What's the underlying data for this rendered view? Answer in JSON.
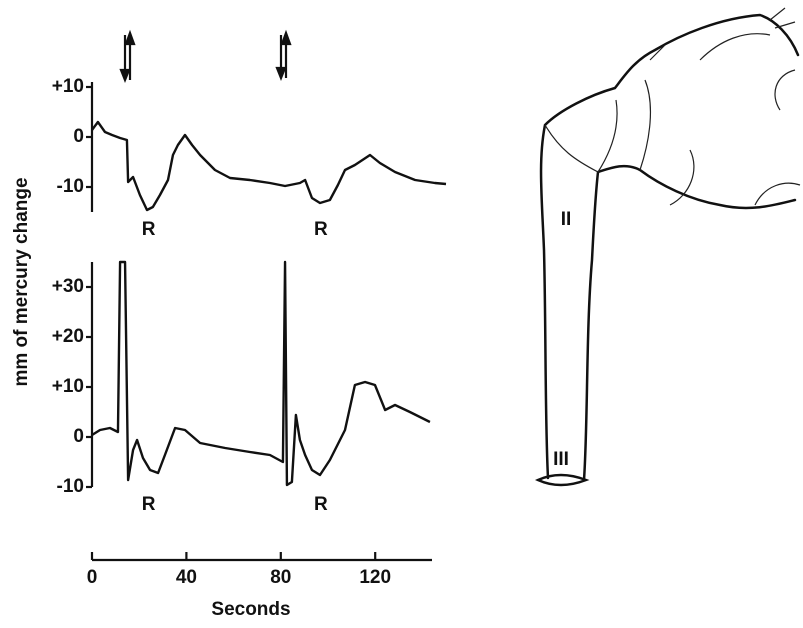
{
  "chart_data": [
    {
      "type": "line",
      "y_label": "mm of mercury change",
      "x": [
        0,
        2.5,
        5.5,
        8.5,
        11.9,
        14.8,
        15.3,
        17.4,
        20.3,
        23.3,
        25.8,
        28.8,
        32.2,
        34.3,
        36.4,
        39.4,
        42.4,
        45.8,
        52.1,
        58.5,
        66.9,
        75.4,
        81.8,
        88.1,
        90.3,
        93.2,
        96.6,
        100.8,
        104.2,
        107.2,
        111.4,
        117.8,
        122,
        128.4,
        136.9,
        145.3,
        150
      ],
      "values": [
        1.4,
        3,
        1,
        0.4,
        -0.2,
        -0.6,
        -9,
        -8,
        -11.6,
        -14.6,
        -14,
        -11.6,
        -8.6,
        -3.6,
        -1.6,
        0.4,
        -1.6,
        -3.6,
        -6.6,
        -8.2,
        -8.6,
        -9.2,
        -9.8,
        -9.2,
        -8.6,
        -12.2,
        -13.2,
        -12.6,
        -9.6,
        -6.6,
        -5.6,
        -3.6,
        -5.2,
        -7,
        -8.6,
        -9.2,
        -9.4
      ],
      "annotations": [
        {
          "text": "R",
          "x": 24
        },
        {
          "text": "R",
          "x": 97
        }
      ],
      "xlim": [
        0,
        150
      ],
      "ylim": [
        -15,
        11
      ],
      "yticks": [
        {
          "value": 10,
          "label": "+10"
        },
        0,
        -10
      ]
    },
    {
      "type": "line",
      "x_label": "Seconds",
      "x": [
        0,
        3.4,
        7.6,
        11,
        11.9,
        14,
        15.3,
        17.4,
        19.1,
        21.6,
        24.6,
        28,
        30.9,
        35.2,
        39.4,
        45.8,
        56.4,
        66.9,
        75.4,
        80.9,
        81.8,
        82.6,
        84.7,
        86.4,
        88.1,
        90.3,
        93.2,
        96.6,
        100.8,
        107.2,
        111.4,
        115.7,
        119.9,
        124.2,
        128.4,
        134.7,
        143.2
      ],
      "values": [
        0.4,
        1.4,
        1.8,
        1,
        35,
        35,
        -8.6,
        -2.6,
        -0.6,
        -4.2,
        -6.6,
        -7.2,
        -3.6,
        1.8,
        1.4,
        -1.2,
        -2.2,
        -3,
        -3.6,
        -5,
        35,
        -9.6,
        -9,
        4.4,
        -0.6,
        -3.6,
        -6.6,
        -7.6,
        -4.6,
        1.4,
        10.4,
        11,
        10.4,
        5.4,
        6.4,
        5,
        3
      ],
      "annotations": [
        {
          "text": "R",
          "x": 24
        },
        {
          "text": "R",
          "x": 97
        }
      ],
      "xlim": [
        0,
        150
      ],
      "ylim": [
        -10,
        35
      ],
      "yticks": [
        {
          "value": 30,
          "label": "+30"
        },
        {
          "value": 20,
          "label": "+20"
        },
        {
          "value": 10,
          "label": "+10"
        },
        0,
        -10
      ],
      "xticks": [
        0,
        40,
        80,
        120
      ]
    }
  ],
  "drawing": {
    "labels": [
      "II",
      "III"
    ]
  }
}
